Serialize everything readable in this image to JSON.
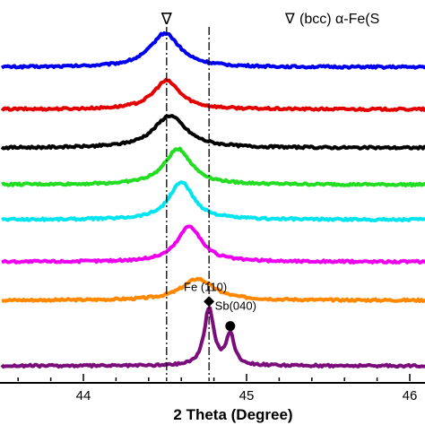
{
  "chart_data": {
    "type": "line",
    "title": "",
    "xlabel": "2 Theta (Degree)",
    "ylabel": "",
    "xlim": [
      43.5,
      46.4
    ],
    "x_ticks": [
      44,
      45,
      46
    ],
    "x_tick_labels": [
      "44",
      "45",
      "46"
    ],
    "legend": {
      "symbol": "∇",
      "text": "(bcc) α-Fe(S",
      "placement": "top-right"
    },
    "reference_lines": [
      {
        "x": 44.51,
        "style": "dash-dot",
        "marker": "∇"
      },
      {
        "x": 44.77,
        "style": "dash-dot"
      }
    ],
    "annotations": [
      {
        "text": "Fe (110)",
        "x": 44.77,
        "marker": "diamond"
      },
      {
        "text": "Sb(040)",
        "x": 44.9,
        "marker": "circle"
      }
    ],
    "series": [
      {
        "color": "#0000ee",
        "baseline": 0,
        "peaks": [
          {
            "center": 44.5,
            "height": 0.95,
            "width": 0.11
          }
        ]
      },
      {
        "color": "#e30000",
        "baseline": 0,
        "peaks": [
          {
            "center": 44.51,
            "height": 0.8,
            "width": 0.1
          }
        ]
      },
      {
        "color": "#000000",
        "baseline": 0,
        "peaks": [
          {
            "center": 44.53,
            "height": 0.9,
            "width": 0.12
          }
        ]
      },
      {
        "color": "#22dd22",
        "baseline": 0,
        "peaks": [
          {
            "center": 44.58,
            "height": 1.0,
            "width": 0.1
          }
        ]
      },
      {
        "color": "#00e5ee",
        "baseline": 0,
        "peaks": [
          {
            "center": 44.6,
            "height": 1.05,
            "width": 0.09
          }
        ]
      },
      {
        "color": "#ee00ee",
        "baseline": 0,
        "peaks": [
          {
            "center": 44.65,
            "height": 1.0,
            "width": 0.09
          }
        ]
      },
      {
        "color": "#ff8800",
        "baseline": 0,
        "peaks": [
          {
            "center": 44.7,
            "height": 0.6,
            "width": 0.12
          }
        ]
      },
      {
        "color": "#7a0d7a",
        "baseline": 0,
        "peaks": [
          {
            "center": 44.77,
            "height": 1.6,
            "width": 0.035
          },
          {
            "center": 44.9,
            "height": 0.85,
            "width": 0.03
          }
        ]
      }
    ]
  }
}
